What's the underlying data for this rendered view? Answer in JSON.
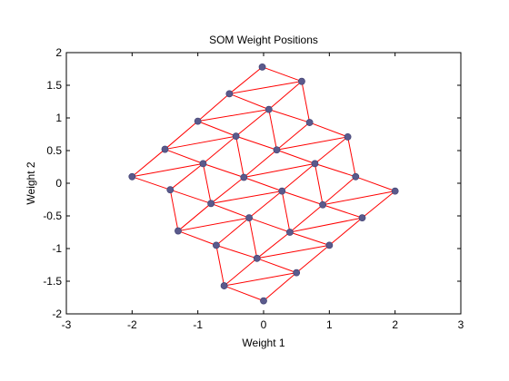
{
  "chart_data": {
    "type": "scatter",
    "title": "SOM Weight Positions",
    "xlabel": "Weight 1",
    "ylabel": "Weight 2",
    "xlim": [
      -3,
      3
    ],
    "ylim": [
      -2,
      2
    ],
    "xticks": [
      -3,
      -2,
      -1,
      0,
      1,
      2,
      3
    ],
    "yticks": [
      -2,
      -1.5,
      -1,
      -0.5,
      0,
      0.5,
      1,
      1.5,
      2
    ],
    "xtick_labels": [
      "-3",
      "-2",
      "-1",
      "0",
      "1",
      "2",
      "3"
    ],
    "ytick_labels": [
      "-2",
      "-1.5",
      "-1",
      "-0.5",
      "0",
      "0.5",
      "1",
      "1.5",
      "2"
    ],
    "grid": false,
    "marker_color": "#5a5a8c",
    "line_color": "#ff0000",
    "grid_rows": 5,
    "grid_cols": 6,
    "neurons": [
      [
        0.0,
        -1.8
      ],
      [
        0.5,
        -1.37
      ],
      [
        1.0,
        -0.95
      ],
      [
        1.5,
        -0.53
      ],
      [
        2.0,
        -0.12
      ],
      [
        -0.6,
        -1.57
      ],
      [
        -0.1,
        -1.15
      ],
      [
        0.4,
        -0.75
      ],
      [
        0.9,
        -0.33
      ],
      [
        1.4,
        0.1
      ],
      [
        -0.72,
        -0.95
      ],
      [
        -0.22,
        -0.53
      ],
      [
        0.28,
        -0.12
      ],
      [
        0.78,
        0.3
      ],
      [
        1.28,
        0.71
      ],
      [
        -1.3,
        -0.73
      ],
      [
        -0.8,
        -0.31
      ],
      [
        -0.3,
        0.09
      ],
      [
        0.2,
        0.51
      ],
      [
        0.7,
        0.93
      ],
      [
        -1.42,
        -0.1
      ],
      [
        -0.92,
        0.3
      ],
      [
        -0.42,
        0.72
      ],
      [
        0.08,
        1.13
      ],
      [
        0.58,
        1.56
      ],
      [
        -2.0,
        0.1
      ],
      [
        -1.5,
        0.52
      ],
      [
        -1.0,
        0.95
      ],
      [
        -0.52,
        1.37
      ],
      [
        -0.02,
        1.78
      ]
    ]
  }
}
